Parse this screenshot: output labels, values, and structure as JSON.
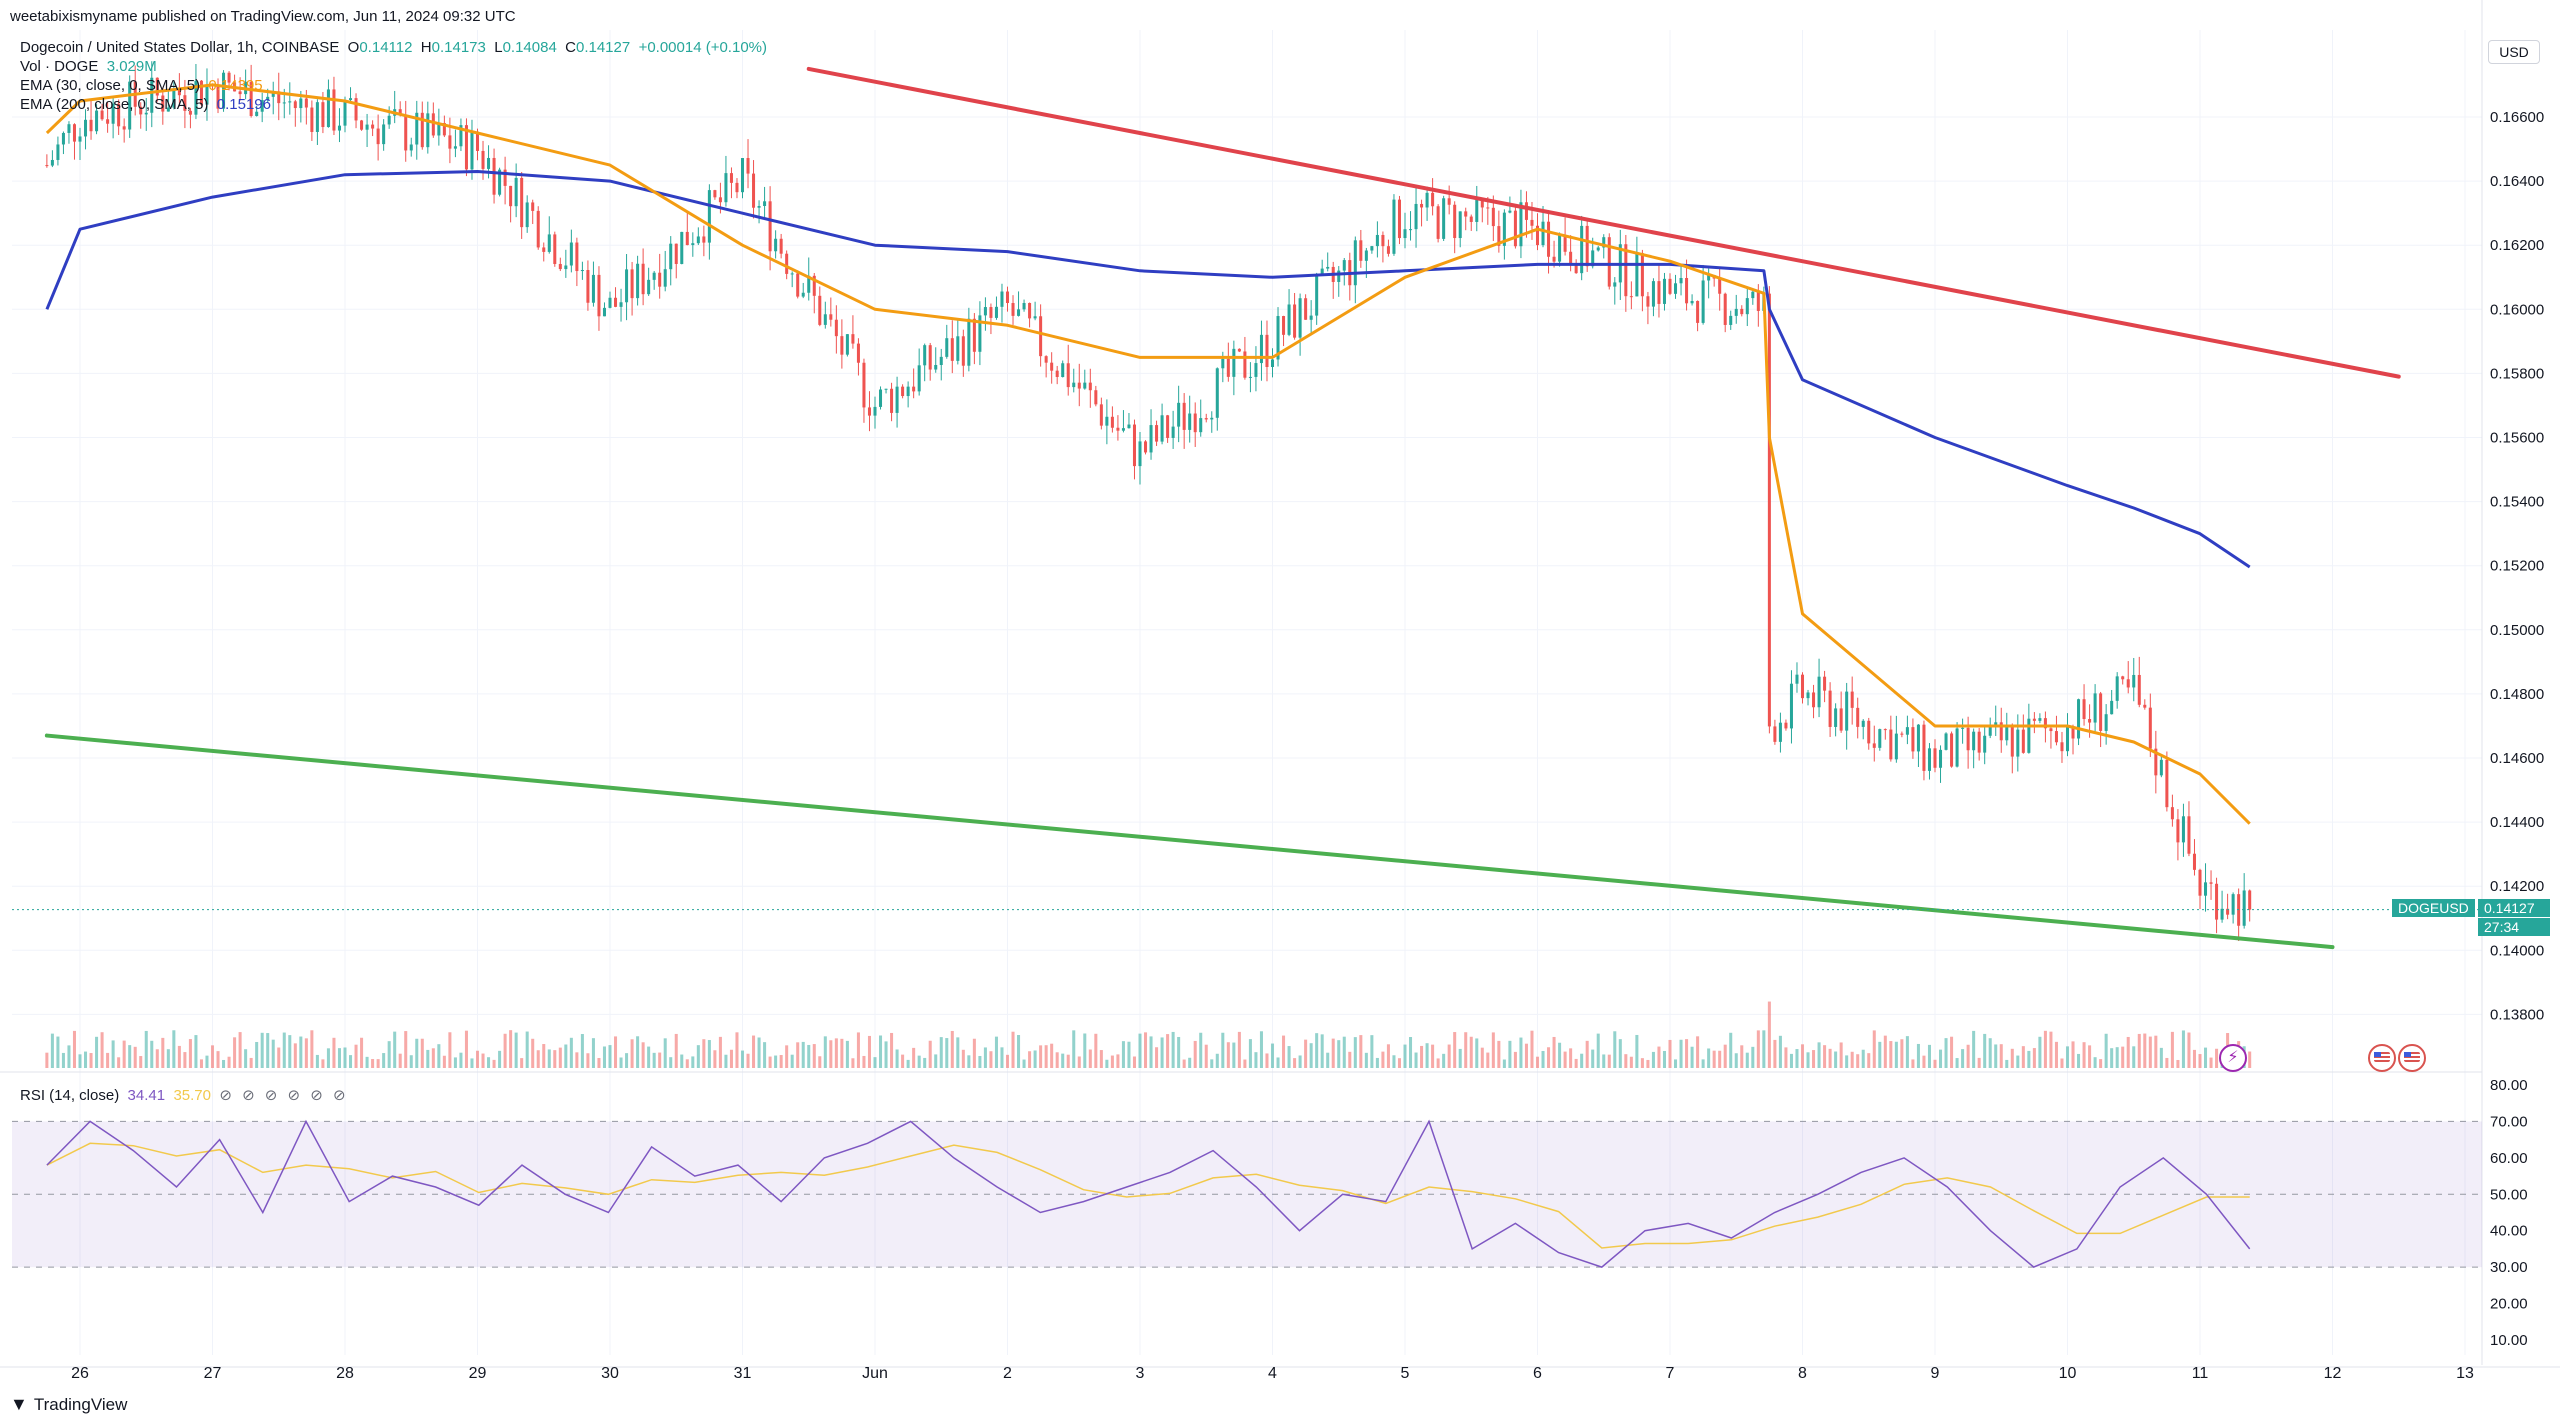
{
  "header": {
    "publisher_line": "weetabixismyname published on TradingView.com, Jun 11, 2024 09:32 UTC"
  },
  "legend": {
    "symbol_line": "Dogecoin / United States Dollar, 1h, COINBASE",
    "ohlc": {
      "o_label": "O",
      "o": "0.14112",
      "h_label": "H",
      "h": "0.14173",
      "l_label": "L",
      "l": "0.14084",
      "c_label": "C",
      "c": "0.14127",
      "change": "+0.00014 (+0.10%)"
    },
    "vol_label": "Vol · DOGE",
    "vol_value": "3.029M",
    "ema30_label": "EMA (30, close, 0, SMA, 5)",
    "ema30_value": "0.14395",
    "ema200_label": "EMA (200, close, 0, SMA, 5)",
    "ema200_value": "0.15196"
  },
  "rsi_legend": {
    "label": "RSI (14, close)",
    "value1": "34.41",
    "value2": "35.70",
    "icons": "⊘ ⊘ ⊘ ⊘ ⊘ ⊘"
  },
  "price_axis": {
    "currency": "USD",
    "ticks": [
      "0.16600",
      "0.16400",
      "0.16200",
      "0.16000",
      "0.15800",
      "0.15600",
      "0.15400",
      "0.15200",
      "0.15000",
      "0.14800",
      "0.14600",
      "0.14400",
      "0.14200",
      "0.14000",
      "0.13800"
    ],
    "last_price_label": "DOGEUSD",
    "last_price": "0.14127",
    "countdown": "27:34"
  },
  "rsi_axis": {
    "ticks": [
      "80.00",
      "70.00",
      "60.00",
      "50.00",
      "40.00",
      "30.00",
      "20.00",
      "10.00"
    ]
  },
  "time_axis": {
    "ticks": [
      "26",
      "27",
      "28",
      "29",
      "30",
      "31",
      "Jun",
      "2",
      "3",
      "4",
      "5",
      "6",
      "7",
      "8",
      "9",
      "10",
      "11",
      "12",
      "13"
    ]
  },
  "footer": {
    "brand": "TradingView"
  },
  "chart_data": {
    "type": "line",
    "title": "Dogecoin / United States Dollar, 1h, COINBASE",
    "x_unit": "date",
    "x": [
      "May 25 18:00",
      "May 26",
      "May 27",
      "May 28",
      "May 29",
      "May 30",
      "May 31",
      "Jun 1",
      "Jun 2",
      "Jun 3",
      "Jun 4",
      "Jun 5",
      "Jun 6",
      "Jun 7",
      "Jun 7 17:00",
      "Jun 7 18:00",
      "Jun 8",
      "Jun 9",
      "Jun 10",
      "Jun 10 12:00",
      "Jun 11",
      "Jun 11 09:00"
    ],
    "series": [
      {
        "name": "DOGEUSD",
        "values": [
          0.1645,
          0.166,
          0.167,
          0.166,
          0.165,
          0.16,
          0.164,
          0.157,
          0.16,
          0.1555,
          0.159,
          0.163,
          0.1625,
          0.1605,
          0.16,
          0.147,
          0.148,
          0.146,
          0.147,
          0.148,
          0.142,
          0.14127
        ]
      },
      {
        "name": "EMA (30, close, 0, SMA, 5)",
        "values": [
          0.1655,
          0.1665,
          0.167,
          0.1665,
          0.1655,
          0.1645,
          0.162,
          0.16,
          0.1595,
          0.1585,
          0.1585,
          0.161,
          0.1625,
          0.1615,
          0.1605,
          0.156,
          0.1505,
          0.147,
          0.147,
          0.1465,
          0.1455,
          0.14395
        ]
      },
      {
        "name": "EMA (200, close, 0, SMA, 5)",
        "values": [
          0.16,
          0.1625,
          0.1635,
          0.1642,
          0.1643,
          0.164,
          0.163,
          0.162,
          0.1618,
          0.1612,
          0.161,
          0.1612,
          0.1614,
          0.1614,
          0.1612,
          0.16,
          0.1578,
          0.156,
          0.1545,
          0.1538,
          0.153,
          0.15196
        ]
      }
    ],
    "trendlines": [
      {
        "name": "resistance",
        "color": "#e0434b",
        "points": [
          [
            "May 31 12:00",
            0.1675
          ],
          [
            "Jun 12 12:00",
            0.1579
          ]
        ]
      },
      {
        "name": "support",
        "color": "#4caf50",
        "points": [
          [
            "May 25 18:00",
            0.1467
          ],
          [
            "Jun 12",
            0.1401
          ]
        ]
      }
    ],
    "ylim": [
      0.137,
      0.168
    ],
    "volume_panel": true,
    "rsi": {
      "label": "RSI (14, close)",
      "values": [
        58,
        70,
        62,
        52,
        65,
        45,
        70,
        48,
        55,
        52,
        47,
        58,
        50,
        45,
        63,
        55,
        58,
        48,
        60,
        64,
        70,
        60,
        52,
        45,
        48,
        52,
        56,
        62,
        52,
        40,
        50,
        48,
        70,
        35,
        42,
        34,
        30,
        40,
        42,
        38,
        45,
        50,
        56,
        60,
        52,
        40,
        30,
        35,
        52,
        60,
        50,
        35
      ],
      "ylim": [
        10,
        80
      ],
      "bands": [
        30,
        70
      ],
      "midline": 50
    },
    "colors": {
      "up": "#26a69a",
      "down": "#ef5350",
      "ema30": "#f39c12",
      "ema200": "#2f3ec2",
      "rsi": "#7e57c2"
    },
    "grid": true
  }
}
